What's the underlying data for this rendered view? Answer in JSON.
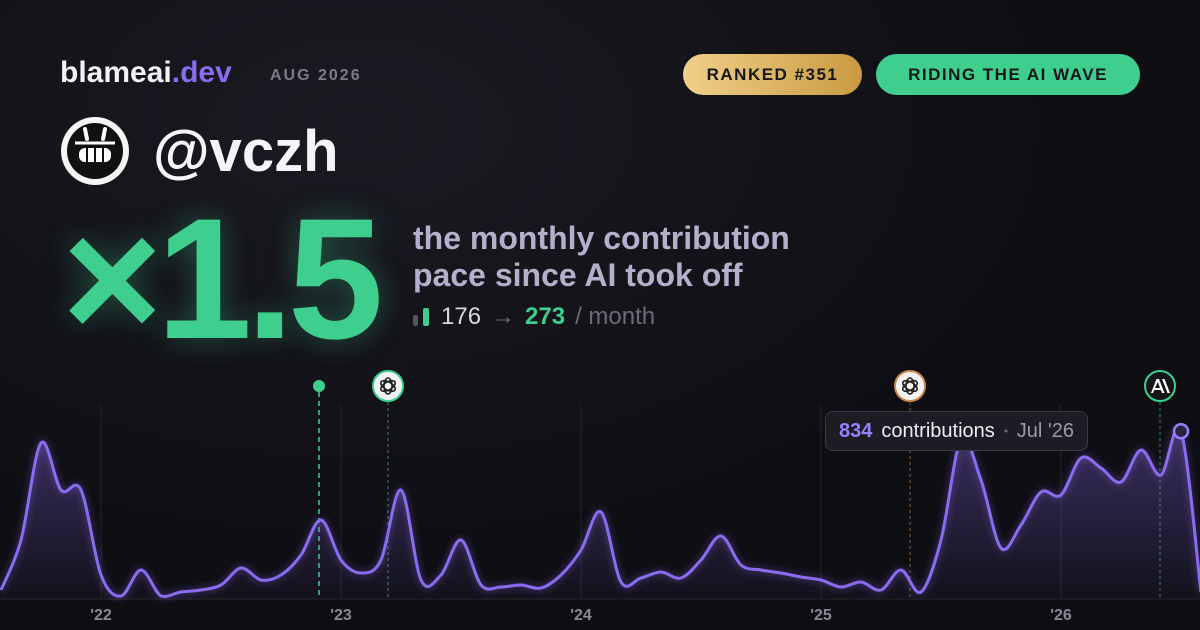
{
  "header": {
    "brand": "blameai",
    "brand_suffix": ".dev",
    "date": "AUG 2026"
  },
  "badges": [
    "RANKED #351",
    "RIDING THE AI WAVE"
  ],
  "user": {
    "handle": "@vczh"
  },
  "stat": {
    "multiplier": "×1.5",
    "line1": "the monthly contribution",
    "line2": "pace since AI took off",
    "from": 176,
    "arrow": "→",
    "to": 273,
    "unit": "/ month"
  },
  "chart_data": {
    "type": "line",
    "color": "#8b6cf0",
    "categories": [
      null,
      null,
      null,
      null,
      null,
      "'22",
      null,
      null,
      null,
      null,
      null,
      null,
      null,
      null,
      null,
      null,
      null,
      "'23",
      null,
      null,
      null,
      null,
      null,
      null,
      null,
      null,
      null,
      null,
      null,
      "'24",
      null,
      null,
      null,
      null,
      null,
      null,
      null,
      null,
      null,
      null,
      null,
      "'25",
      null,
      null,
      null,
      null,
      null,
      null,
      null,
      null,
      null,
      null,
      null,
      "'26",
      null,
      null,
      null,
      null,
      null,
      null,
      null
    ],
    "values": [
      40,
      290,
      775,
      540,
      540,
      115,
      10,
      140,
      10,
      30,
      40,
      65,
      150,
      90,
      115,
      215,
      390,
      190,
      125,
      190,
      540,
      90,
      115,
      290,
      65,
      55,
      65,
      50,
      115,
      240,
      430,
      80,
      100,
      130,
      100,
      190,
      310,
      165,
      140,
      125,
      105,
      90,
      55,
      80,
      40,
      140,
      30,
      290,
      790,
      590,
      250,
      365,
      530,
      515,
      700,
      650,
      580,
      740,
      615,
      834,
      30
    ],
    "ylim": [
      0,
      1000
    ],
    "tooltip": {
      "label": "contributions",
      "date": "Jul '26"
    }
  }
}
